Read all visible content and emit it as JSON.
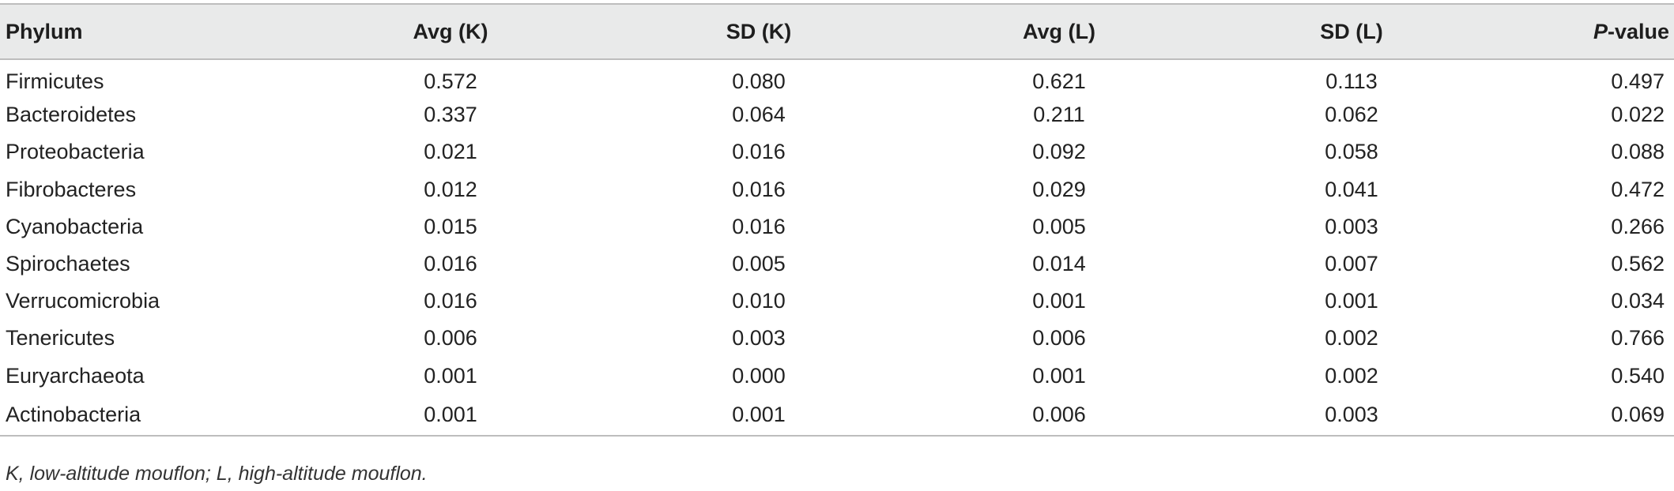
{
  "table": {
    "headers": {
      "phylum": "Phylum",
      "avg_k": "Avg (K)",
      "sd_k": "SD (K)",
      "avg_l": "Avg (L)",
      "sd_l": "SD (L)",
      "p_value_italic": "P",
      "p_value_rest": "-value"
    },
    "rows": [
      [
        "Firmicutes",
        "0.572",
        "0.080",
        "0.621",
        "0.113",
        "0.497"
      ],
      [
        "Bacteroidetes",
        "0.337",
        "0.064",
        "0.211",
        "0.062",
        "0.022"
      ],
      [
        "Proteobacteria",
        "0.021",
        "0.016",
        "0.092",
        "0.058",
        "0.088"
      ],
      [
        "Fibrobacteres",
        "0.012",
        "0.016",
        "0.029",
        "0.041",
        "0.472"
      ],
      [
        "Cyanobacteria",
        "0.015",
        "0.016",
        "0.005",
        "0.003",
        "0.266"
      ],
      [
        "Spirochaetes",
        "0.016",
        "0.005",
        "0.014",
        "0.007",
        "0.562"
      ],
      [
        "Verrucomicrobia",
        "0.016",
        "0.010",
        "0.001",
        "0.001",
        "0.034"
      ],
      [
        "Tenericutes",
        "0.006",
        "0.003",
        "0.006",
        "0.002",
        "0.766"
      ],
      [
        "Euryarchaeota",
        "0.001",
        "0.000",
        "0.001",
        "0.002",
        "0.540"
      ],
      [
        "Actinobacteria",
        "0.001",
        "0.001",
        "0.006",
        "0.003",
        "0.069"
      ]
    ]
  },
  "footnote": "K, low-altitude mouflon; L, high-altitude mouflon."
}
